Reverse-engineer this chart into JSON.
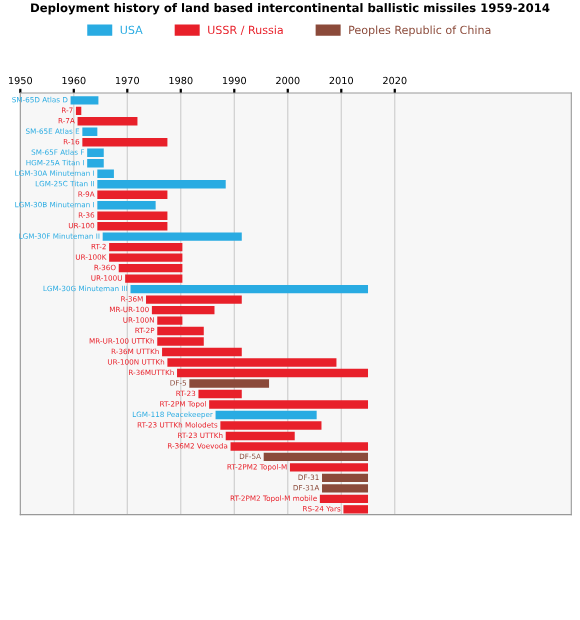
{
  "chart_data": {
    "type": "bar",
    "orientation": "horizontal",
    "title": "Deployment history of land based intercontinental ballistic missiles 1959-2014",
    "categories": [
      "SM-65D Atlas D",
      "R-7",
      "R-7A",
      "SM-65E Atlas E",
      "R-16",
      "SM-65F Atlas F",
      "HGM-25A Titan I",
      "LGM-30A Minuteman I",
      "LGM-25C Titan II",
      "R-9A",
      "LGM-30B Minuteman I",
      "R-36",
      "UR-100",
      "LGM-30F Minuteman II",
      "RT-2",
      "UR-100K",
      "R-36O",
      "UR-100U",
      "LGM-30G Minuteman III",
      "R-36M",
      "MR-UR-100",
      "UR-100N",
      "RT-2P",
      "MR-UR-100 UTTKh",
      "R-36M UTTKh",
      "UR-100N UTTKh",
      "R-36MUTTKh",
      "DF-5",
      "RT-23",
      "RT-2PM Topol",
      "LGM-118 Peacekeeper",
      "RT-23 UTTKh Molodets",
      "RT-23 UTTKh",
      "R-36M2 Voevoda",
      "DF-5A",
      "RT-2PM2 Topol-M",
      "DF-31",
      "DF-31A",
      "RT-2PM2 Topol-M mobile",
      "RS-24 Yars"
    ],
    "series": [
      {
        "name": "USA",
        "color": "#29abe2",
        "base": [
          1959.4,
          null,
          null,
          1961.6,
          null,
          1962.5,
          1962.5,
          1964.4,
          1964.4,
          null,
          1964.4,
          null,
          null,
          1965.4,
          null,
          null,
          null,
          null,
          1970.6,
          null,
          null,
          null,
          null,
          null,
          null,
          null,
          null,
          null,
          null,
          null,
          1986.5,
          null,
          null,
          null,
          null,
          null,
          null,
          null,
          null,
          null
        ],
        "values": [
          5.2,
          null,
          null,
          2.8,
          null,
          3.1,
          3.1,
          3.1,
          24.0,
          null,
          10.9,
          null,
          null,
          26.0,
          null,
          null,
          null,
          null,
          44.4,
          null,
          null,
          null,
          null,
          null,
          null,
          null,
          null,
          null,
          null,
          null,
          18.9,
          null,
          null,
          null,
          null,
          null,
          null,
          null,
          null,
          null
        ]
      },
      {
        "name": "USSR / Russia",
        "color": "#e8202a",
        "base": [
          null,
          1960.4,
          1960.7,
          null,
          1961.6,
          null,
          null,
          null,
          null,
          1964.4,
          null,
          1964.4,
          1964.4,
          null,
          1966.6,
          1966.6,
          1968.4,
          1969.6,
          null,
          1973.5,
          1974.6,
          1975.6,
          1975.6,
          1975.6,
          1976.5,
          1977.5,
          1979.3,
          null,
          1983.3,
          1985.3,
          null,
          1987.4,
          1988.4,
          1989.3,
          null,
          2000.4,
          null,
          null,
          2006,
          2010.4
        ],
        "values": [
          null,
          1.0,
          11.2,
          null,
          15.9,
          null,
          null,
          null,
          null,
          13.1,
          null,
          13.1,
          13.1,
          null,
          13.7,
          13.7,
          11.9,
          10.7,
          null,
          17.9,
          11.7,
          4.7,
          8.7,
          8.7,
          14.9,
          31.6,
          35.7,
          null,
          8.1,
          29.7,
          null,
          18.9,
          12.9,
          25.7,
          null,
          14.6,
          null,
          null,
          9.0,
          4.6
        ]
      },
      {
        "name": "Peoples Republic of China",
        "color": "#8b4a3a",
        "base": [
          null,
          null,
          null,
          null,
          null,
          null,
          null,
          null,
          null,
          null,
          null,
          null,
          null,
          null,
          null,
          null,
          null,
          null,
          null,
          null,
          null,
          null,
          null,
          null,
          null,
          null,
          null,
          1981.6,
          null,
          null,
          null,
          null,
          null,
          null,
          1995.5,
          null,
          2006.4,
          2006.4,
          null,
          null
        ],
        "values": [
          null,
          null,
          null,
          null,
          null,
          null,
          null,
          null,
          null,
          null,
          null,
          null,
          null,
          null,
          null,
          null,
          null,
          null,
          null,
          null,
          null,
          null,
          null,
          null,
          null,
          null,
          null,
          14.9,
          null,
          null,
          null,
          null,
          null,
          null,
          19.5,
          null,
          8.6,
          8.6,
          null,
          null
        ]
      }
    ],
    "xlim": [
      1950,
      2053
    ],
    "xticks": [
      1950,
      1960,
      1970,
      1980,
      1990,
      2000,
      2010,
      2020
    ],
    "grid": "x",
    "legend": "top"
  }
}
